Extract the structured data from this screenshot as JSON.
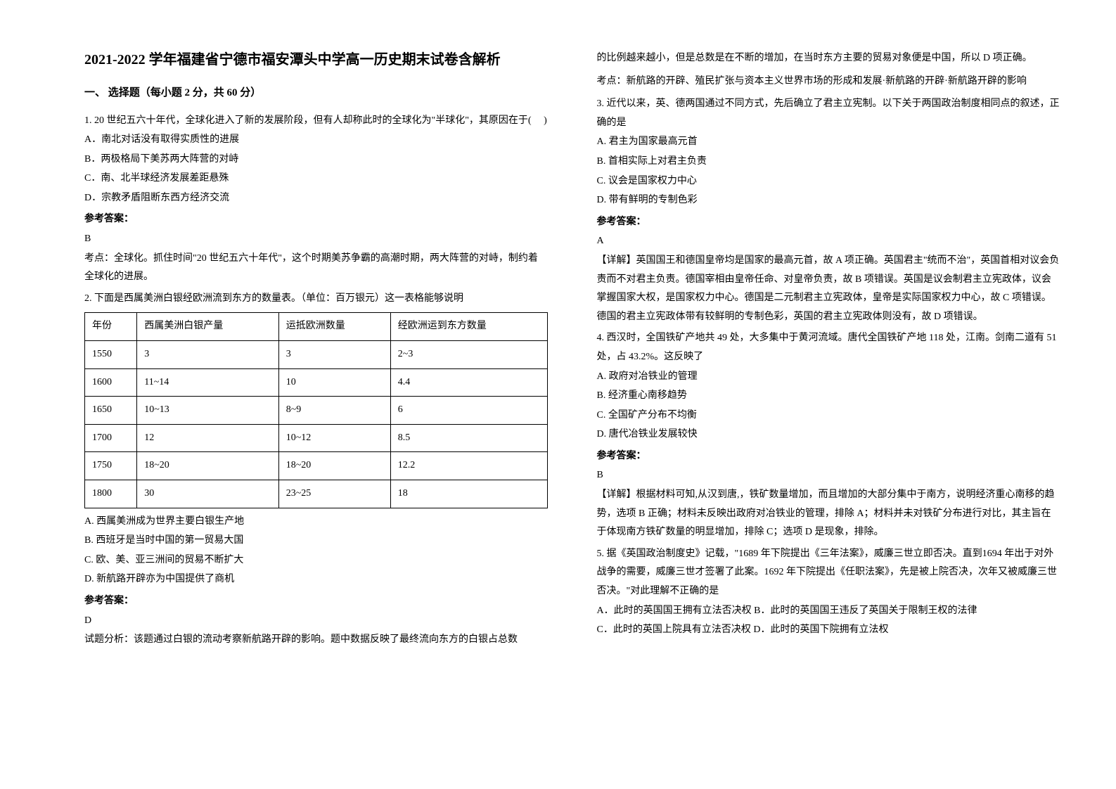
{
  "title": "2021-2022 学年福建省宁德市福安潭头中学高一历史期末试卷含解析",
  "section_heading": "一、 选择题（每小题 2 分，共 60 分）",
  "q1": {
    "stem": "1. 20 世纪五六十年代，全球化进入了新的发展阶段，但有人却称此时的全球化为\"半球化\"，其原因在于(　  )",
    "opts": {
      "a": "A．南北对话没有取得实质性的进展",
      "b": "B．两极格局下美苏两大阵营的对峙",
      "c": "C．南、北半球经济发展差距悬殊",
      "d": "D．宗教矛盾阻断东西方经济交流"
    },
    "answer_label": "参考答案：",
    "answer": " B",
    "explain": "考点：全球化。抓住时间\"20 世纪五六十年代\"，这个时期美苏争霸的高潮时期，两大阵营的对峙，制约着全球化的进展。"
  },
  "q2": {
    "stem": "2. 下面是西属美洲白银经欧洲流到东方的数量表。（单位：百万银元）这一表格能够说明",
    "table": {
      "headers": [
        "年份",
        "西属美洲白银产量",
        "运抵欧洲数量",
        "经欧洲运到东方数量"
      ],
      "rows": [
        [
          "1550",
          "3",
          "3",
          "2~3"
        ],
        [
          "1600",
          "11~14",
          "10",
          "4.4"
        ],
        [
          "1650",
          "10~13",
          "8~9",
          "6"
        ],
        [
          "1700",
          "12",
          "10~12",
          "8.5"
        ],
        [
          "1750",
          "18~20",
          "18~20",
          "12.2"
        ],
        [
          "1800",
          "30",
          "23~25",
          "18"
        ]
      ]
    },
    "opts": {
      "a": "A. 西属美洲成为世界主要白银生产地",
      "b": "B. 西班牙是当时中国的第一贸易大国",
      "c": "C. 欧、美、亚三洲间的贸易不断扩大",
      "d": "D. 新航路开辟亦为中国提供了商机"
    },
    "answer_label": "参考答案：",
    "answer": "D",
    "explain1": "试题分析：该题通过白银的流动考察新航路开辟的影响。题中数据反映了最终流向东方的白银占总数",
    "explain2": "的比例越来越小，但是总数是在不断的增加，在当时东方主要的贸易对象便是中国，所以 D 项正确。",
    "explain3": "考点：新航路的开辟、殖民扩张与资本主义世界市场的形成和发展·新航路的开辟·新航路开辟的影响"
  },
  "q3": {
    "stem": "3. 近代以来，英、德两国通过不同方式，先后确立了君主立宪制。以下关于两国政治制度相同点的叙述，正确的是",
    "opts": {
      "a": "A. 君主为国家最高元首",
      "b": "B. 首相实际上对君主负责",
      "c": "C. 议会是国家权力中心",
      "d": "D. 带有鲜明的专制色彩"
    },
    "answer_label": "参考答案：",
    "answer": "A",
    "explain": "【详解】英国国王和德国皇帝均是国家的最高元首，故 A 项正确。英国君主\"统而不治\"，英国首相对议会负责而不对君主负责。德国宰相由皇帝任命、对皇帝负责，故 B 项错误。英国是议会制君主立宪政体，议会掌握国家大权，是国家权力中心。德国是二元制君主立宪政体，皇帝是实际国家权力中心，故 C 项错误。德国的君主立宪政体带有较鲜明的专制色彩，英国的君主立宪政体则没有，故 D 项错误。"
  },
  "q4": {
    "stem": "4. 西汉时，全国铁矿产地共 49 处，大多集中于黄河流域。唐代全国铁矿产地 118 处，江南。剑南二道有 51 处，占 43.2%。这反映了",
    "opts": {
      "a": "A. 政府对冶铁业的管理",
      "b": "B. 经济重心南移趋势",
      "c": "C. 全国矿产分布不均衡",
      "d": "D. 唐代冶铁业发展较快"
    },
    "answer_label": "参考答案：",
    "answer": "B",
    "explain": "【详解】根据材料可知,从汉到唐,，铁矿数量增加，而且增加的大部分集中于南方，说明经济重心南移的趋势，选项 B 正确；材料未反映出政府对冶铁业的管理，排除 A；材料并未对铁矿分布进行对比，其主旨在于体现南方铁矿数量的明显增加，排除 C；选项 D 是现象，排除。"
  },
  "q5": {
    "stem": "5. 据《英国政治制度史》记载，\"1689 年下院提出《三年法案》，威廉三世立即否决。直到1694 年出于对外战争的需要，威廉三世才签署了此案。1692 年下院提出《任职法案》，先是被上院否决，次年又被威廉三世否决。\"对此理解不正确的是",
    "opts": {
      "a": "A．此时的英国国王拥有立法否决权",
      "b": "B．此时的英国国王违反了英国关于限制王权的法律",
      "c": "C．此时的英国上院具有立法否决权",
      "d": "D．此时的英国下院拥有立法权"
    }
  }
}
